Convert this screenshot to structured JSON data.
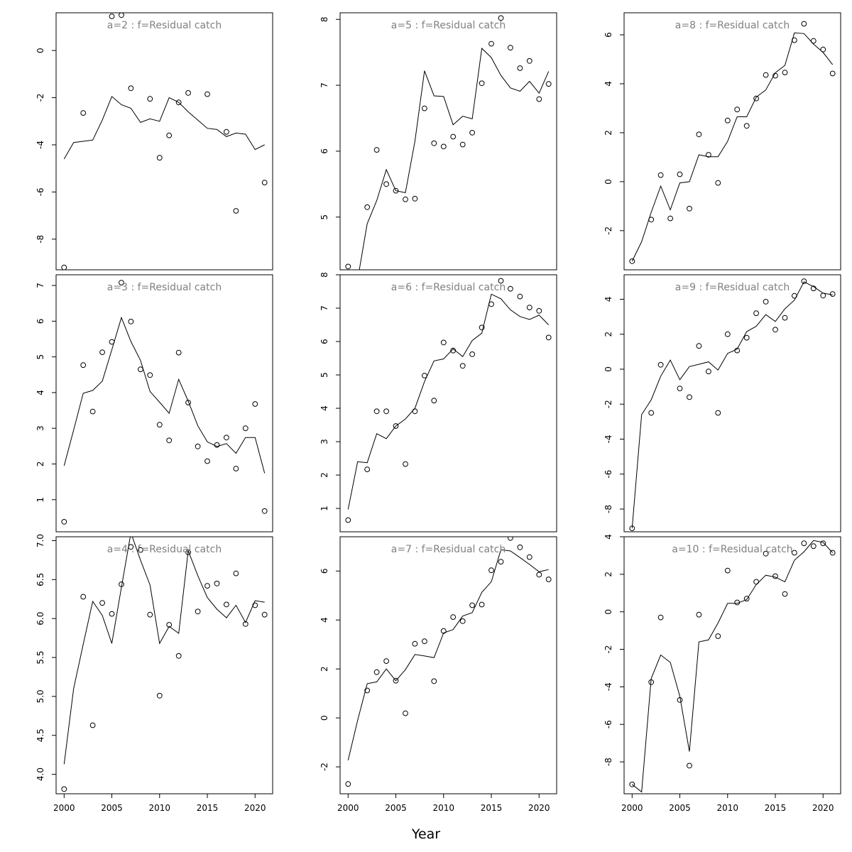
{
  "figure": {
    "xlabel": "Year",
    "colors": {
      "axis": "#000000",
      "line": "#000000",
      "points": "#000000",
      "title": "#808080"
    }
  },
  "chart_data": [
    {
      "type": "scatter",
      "title": "a=2 : f=Residual catch",
      "xlim": [
        2000,
        2021
      ],
      "ylim": [
        -9.3,
        1.6
      ],
      "xticks": [
        2000,
        2005,
        2010,
        2015,
        2020
      ],
      "yticks": [
        -8,
        -6,
        -4,
        -2,
        0
      ],
      "grid": false,
      "series": [
        {
          "kind": "points",
          "x": [
            2000,
            2002,
            2005,
            2006,
            2007,
            2009,
            2010,
            2011,
            2012,
            2013,
            2015,
            2017,
            2018,
            2021
          ],
          "y": [
            -9.2,
            -2.65,
            1.45,
            1.5,
            -1.6,
            -2.05,
            -4.55,
            -3.6,
            -2.2,
            -1.8,
            -1.85,
            -3.45,
            -6.8,
            -5.6
          ]
        },
        {
          "kind": "line",
          "x": [
            2000,
            2001,
            2002,
            2003,
            2004,
            2005,
            2006,
            2007,
            2008,
            2009,
            2010,
            2011,
            2012,
            2013,
            2014,
            2015,
            2016,
            2017,
            2018,
            2019,
            2020,
            2021
          ],
          "y": [
            -4.6,
            -3.9,
            -3.85,
            -3.8,
            -2.95,
            -1.95,
            -2.3,
            -2.45,
            -3.05,
            -2.9,
            -3.0,
            -2.0,
            -2.2,
            -2.6,
            -2.95,
            -3.3,
            -3.35,
            -3.65,
            -3.5,
            -3.55,
            -4.2,
            -4.0
          ]
        }
      ]
    },
    {
      "type": "scatter",
      "title": "a=5 : f=Residual catch",
      "xlim": [
        2000,
        2021
      ],
      "ylim": [
        4.2,
        8.1
      ],
      "xticks": [
        2000,
        2005,
        2010,
        2015,
        2020
      ],
      "yticks": [
        5,
        6,
        7,
        8
      ],
      "grid": false,
      "series": [
        {
          "kind": "points",
          "x": [
            2000,
            2002,
            2003,
            2004,
            2005,
            2006,
            2007,
            2008,
            2009,
            2010,
            2011,
            2012,
            2013,
            2014,
            2015,
            2016,
            2017,
            2018,
            2019,
            2020,
            2021
          ],
          "y": [
            4.25,
            5.15,
            6.02,
            5.5,
            5.4,
            5.27,
            5.28,
            6.65,
            6.12,
            6.07,
            6.22,
            6.1,
            6.28,
            7.03,
            7.63,
            8.02,
            7.57,
            7.26,
            7.37,
            6.79,
            7.02
          ]
        },
        {
          "kind": "line",
          "x": [
            2000,
            2001,
            2002,
            2003,
            2004,
            2005,
            2006,
            2007,
            2008,
            2009,
            2010,
            2011,
            2012,
            2013,
            2014,
            2015,
            2016,
            2017,
            2018,
            2019,
            2020,
            2021
          ],
          "y": [
            4.2,
            4.05,
            4.9,
            5.25,
            5.72,
            5.4,
            5.37,
            6.15,
            7.22,
            6.84,
            6.83,
            6.4,
            6.53,
            6.49,
            7.56,
            7.42,
            7.15,
            6.96,
            6.91,
            7.06,
            6.88,
            7.21
          ]
        }
      ]
    },
    {
      "type": "scatter",
      "title": "a=8 : f=Residual catch",
      "xlim": [
        2000,
        2021
      ],
      "ylim": [
        -3.6,
        6.9
      ],
      "xticks": [
        2000,
        2005,
        2010,
        2015,
        2020
      ],
      "yticks": [
        -2,
        0,
        2,
        4,
        6
      ],
      "grid": false,
      "series": [
        {
          "kind": "points",
          "x": [
            2000,
            2002,
            2003,
            2004,
            2005,
            2006,
            2007,
            2008,
            2009,
            2010,
            2011,
            2012,
            2013,
            2014,
            2015,
            2016,
            2017,
            2018,
            2019,
            2020,
            2021
          ],
          "y": [
            -3.25,
            -1.55,
            0.27,
            -1.5,
            0.3,
            -1.1,
            1.93,
            1.1,
            -0.05,
            2.5,
            2.95,
            2.28,
            3.4,
            4.36,
            4.33,
            4.46,
            5.78,
            6.45,
            5.75,
            5.4,
            4.42
          ]
        },
        {
          "kind": "line",
          "x": [
            2000,
            2001,
            2002,
            2003,
            2004,
            2005,
            2006,
            2007,
            2008,
            2009,
            2010,
            2011,
            2012,
            2013,
            2014,
            2015,
            2016,
            2017,
            2018,
            2019,
            2020,
            2021
          ],
          "y": [
            -3.25,
            -2.45,
            -1.25,
            -0.18,
            -1.15,
            -0.05,
            0.0,
            1.1,
            1.02,
            1.02,
            1.65,
            2.65,
            2.65,
            3.45,
            3.75,
            4.45,
            4.75,
            6.08,
            6.05,
            5.62,
            5.28,
            4.78
          ]
        }
      ]
    },
    {
      "type": "scatter",
      "title": "a=3 : f=Residual catch",
      "xlim": [
        2000,
        2021
      ],
      "ylim": [
        0.1,
        7.3
      ],
      "xticks": [
        2000,
        2005,
        2010,
        2015,
        2020
      ],
      "yticks": [
        1,
        2,
        3,
        4,
        5,
        6,
        7
      ],
      "grid": false,
      "series": [
        {
          "kind": "points",
          "x": [
            2000,
            2002,
            2003,
            2004,
            2005,
            2006,
            2007,
            2008,
            2009,
            2010,
            2011,
            2012,
            2013,
            2014,
            2015,
            2016,
            2017,
            2018,
            2019,
            2020,
            2021
          ],
          "y": [
            0.38,
            4.77,
            3.47,
            5.13,
            5.42,
            7.08,
            5.99,
            4.65,
            4.49,
            3.1,
            2.66,
            5.12,
            3.72,
            2.49,
            2.08,
            2.53,
            2.74,
            1.87,
            3.0,
            3.68,
            0.68
          ]
        },
        {
          "kind": "line",
          "x": [
            2000,
            2001,
            2002,
            2003,
            2004,
            2005,
            2006,
            2007,
            2008,
            2009,
            2010,
            2011,
            2012,
            2013,
            2014,
            2015,
            2016,
            2017,
            2018,
            2019,
            2020,
            2021
          ],
          "y": [
            1.95,
            2.95,
            3.98,
            4.06,
            4.32,
            5.2,
            6.1,
            5.43,
            4.9,
            4.03,
            3.73,
            3.42,
            4.37,
            3.76,
            3.07,
            2.62,
            2.49,
            2.57,
            2.3,
            2.74,
            2.74,
            1.74
          ]
        }
      ]
    },
    {
      "type": "scatter",
      "title": "a=6 : f=Residual catch",
      "xlim": [
        2000,
        2021
      ],
      "ylim": [
        0.3,
        8.0
      ],
      "xticks": [
        2000,
        2005,
        2010,
        2015,
        2020
      ],
      "yticks": [
        1,
        2,
        3,
        4,
        5,
        6,
        7,
        8
      ],
      "grid": false,
      "series": [
        {
          "kind": "points",
          "x": [
            2000,
            2002,
            2003,
            2004,
            2005,
            2006,
            2007,
            2008,
            2009,
            2010,
            2011,
            2012,
            2013,
            2014,
            2015,
            2016,
            2017,
            2018,
            2019,
            2020,
            2021
          ],
          "y": [
            0.65,
            2.17,
            3.91,
            3.91,
            3.47,
            2.33,
            3.91,
            4.98,
            4.23,
            5.97,
            5.73,
            5.27,
            5.62,
            6.42,
            7.12,
            7.82,
            7.58,
            7.35,
            7.02,
            6.92,
            6.12
          ]
        },
        {
          "kind": "line",
          "x": [
            2000,
            2001,
            2002,
            2003,
            2004,
            2005,
            2006,
            2007,
            2008,
            2009,
            2010,
            2011,
            2012,
            2013,
            2014,
            2015,
            2016,
            2017,
            2018,
            2019,
            2020,
            2021
          ],
          "y": [
            0.97,
            2.4,
            2.37,
            3.24,
            3.09,
            3.47,
            3.68,
            4.0,
            4.8,
            5.42,
            5.48,
            5.78,
            5.55,
            6.03,
            6.25,
            7.42,
            7.28,
            6.95,
            6.75,
            6.66,
            6.79,
            6.5
          ]
        }
      ]
    },
    {
      "type": "scatter",
      "title": "a=9 : f=Residual catch",
      "xlim": [
        2000,
        2021
      ],
      "ylim": [
        -9.3,
        5.4
      ],
      "xticks": [
        2000,
        2005,
        2010,
        2015,
        2020
      ],
      "yticks": [
        -8,
        -6,
        -4,
        -2,
        0,
        2,
        4
      ],
      "grid": false,
      "series": [
        {
          "kind": "points",
          "x": [
            2000,
            2002,
            2003,
            2005,
            2006,
            2007,
            2008,
            2009,
            2010,
            2011,
            2012,
            2013,
            2014,
            2015,
            2016,
            2017,
            2018,
            2019,
            2020,
            2021
          ],
          "y": [
            -9.1,
            -2.5,
            0.25,
            -1.1,
            -1.6,
            1.33,
            -0.13,
            -2.5,
            2.0,
            1.07,
            1.8,
            3.2,
            3.86,
            2.26,
            2.94,
            4.2,
            5.03,
            4.62,
            4.21,
            4.3
          ]
        },
        {
          "kind": "line",
          "x": [
            2000,
            2001,
            2002,
            2003,
            2004,
            2005,
            2006,
            2007,
            2008,
            2009,
            2010,
            2011,
            2012,
            2013,
            2014,
            2015,
            2016,
            2017,
            2018,
            2019,
            2020,
            2021
          ],
          "y": [
            -9.1,
            -2.6,
            -1.75,
            -0.4,
            0.52,
            -0.6,
            0.15,
            0.28,
            0.42,
            -0.05,
            0.9,
            1.15,
            2.15,
            2.45,
            3.12,
            2.73,
            3.45,
            3.95,
            5.0,
            4.72,
            4.35,
            4.25
          ]
        }
      ]
    },
    {
      "type": "scatter",
      "title": "a=4 : f=Residual catch",
      "xlim": [
        2000,
        2021
      ],
      "ylim": [
        3.75,
        7.05
      ],
      "xticks": [
        2000,
        2005,
        2010,
        2015,
        2020
      ],
      "yticks": [
        4.0,
        4.5,
        5.0,
        5.5,
        6.0,
        6.5,
        7.0
      ],
      "grid": false,
      "series": [
        {
          "kind": "points",
          "x": [
            2000,
            2002,
            2003,
            2004,
            2005,
            2006,
            2007,
            2008,
            2009,
            2010,
            2011,
            2012,
            2013,
            2014,
            2015,
            2016,
            2017,
            2018,
            2019,
            2020,
            2021
          ],
          "y": [
            3.81,
            6.28,
            4.63,
            6.2,
            6.06,
            6.44,
            6.92,
            6.88,
            6.05,
            5.01,
            5.92,
            5.52,
            6.85,
            6.09,
            6.42,
            6.45,
            6.18,
            6.58,
            5.93,
            6.17,
            6.05
          ]
        },
        {
          "kind": "line",
          "x": [
            2000,
            2001,
            2002,
            2003,
            2004,
            2005,
            2006,
            2007,
            2008,
            2009,
            2010,
            2011,
            2012,
            2013,
            2014,
            2015,
            2016,
            2017,
            2018,
            2019,
            2020,
            2021
          ],
          "y": [
            4.13,
            5.1,
            5.67,
            6.22,
            6.04,
            5.68,
            6.4,
            7.1,
            6.75,
            6.43,
            5.68,
            5.9,
            5.81,
            6.87,
            6.55,
            6.27,
            6.12,
            6.01,
            6.17,
            5.95,
            6.23,
            6.21
          ]
        }
      ]
    },
    {
      "type": "scatter",
      "title": "a=7 : f=Residual catch",
      "xlim": [
        2000,
        2021
      ],
      "ylim": [
        -3.1,
        7.4
      ],
      "xticks": [
        2000,
        2005,
        2010,
        2015,
        2020
      ],
      "yticks": [
        -2,
        0,
        2,
        4,
        6
      ],
      "grid": false,
      "series": [
        {
          "kind": "points",
          "x": [
            2000,
            2002,
            2003,
            2004,
            2005,
            2006,
            2007,
            2008,
            2009,
            2010,
            2011,
            2012,
            2013,
            2014,
            2015,
            2016,
            2017,
            2018,
            2019,
            2020,
            2021
          ],
          "y": [
            -2.7,
            1.12,
            1.87,
            2.32,
            1.52,
            0.19,
            3.03,
            3.13,
            1.5,
            3.55,
            4.12,
            3.95,
            4.6,
            4.63,
            6.03,
            6.38,
            7.35,
            6.97,
            6.57,
            5.85,
            5.66
          ]
        },
        {
          "kind": "line",
          "x": [
            2000,
            2001,
            2002,
            2003,
            2004,
            2005,
            2006,
            2007,
            2008,
            2009,
            2010,
            2011,
            2012,
            2013,
            2014,
            2015,
            2016,
            2017,
            2018,
            2019,
            2020,
            2021
          ],
          "y": [
            -1.73,
            -0.1,
            1.4,
            1.47,
            2.0,
            1.52,
            1.97,
            2.59,
            2.53,
            2.46,
            3.47,
            3.61,
            4.16,
            4.3,
            5.13,
            5.56,
            6.87,
            6.82,
            6.55,
            6.27,
            5.97,
            6.06
          ]
        }
      ]
    },
    {
      "type": "scatter",
      "title": "a=10 : f=Residual catch",
      "xlim": [
        2000,
        2021
      ],
      "ylim": [
        -9.7,
        4.0
      ],
      "xticks": [
        2000,
        2005,
        2010,
        2015,
        2020
      ],
      "yticks": [
        -8,
        -6,
        -4,
        -2,
        0,
        2,
        4
      ],
      "grid": false,
      "series": [
        {
          "kind": "points",
          "x": [
            2000,
            2002,
            2003,
            2005,
            2006,
            2007,
            2009,
            2010,
            2011,
            2012,
            2013,
            2014,
            2015,
            2016,
            2017,
            2018,
            2019,
            2020,
            2021
          ],
          "y": [
            -9.2,
            -3.75,
            -0.3,
            -4.7,
            -8.2,
            -0.15,
            -1.3,
            2.2,
            0.5,
            0.7,
            1.6,
            3.1,
            1.9,
            0.95,
            3.15,
            3.65,
            3.5,
            3.65,
            3.15
          ]
        },
        {
          "kind": "line",
          "x": [
            2000,
            2001,
            2002,
            2003,
            2004,
            2005,
            2006,
            2007,
            2008,
            2009,
            2010,
            2011,
            2012,
            2013,
            2014,
            2015,
            2016,
            2017,
            2018,
            2019,
            2020,
            2021
          ],
          "y": [
            -9.2,
            -9.6,
            -3.55,
            -2.3,
            -2.7,
            -4.5,
            -7.45,
            -1.6,
            -1.5,
            -0.6,
            0.45,
            0.45,
            0.65,
            1.45,
            1.95,
            1.85,
            1.6,
            2.75,
            3.2,
            3.8,
            3.7,
            3.15
          ]
        }
      ]
    }
  ]
}
